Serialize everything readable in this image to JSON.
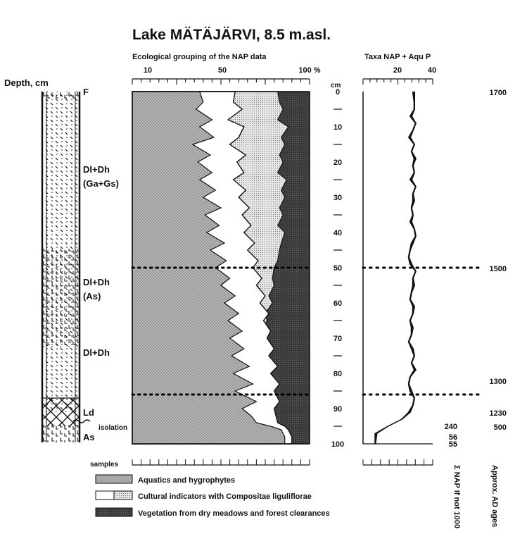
{
  "title": "Lake MÄTÄJÄRVI, 8.5 m.asl.",
  "left_panel": {
    "title": "Ecological grouping of the NAP data",
    "axis_ticks": [
      "10",
      "50",
      "100 %"
    ]
  },
  "right_panel": {
    "title": "Taxa NAP + Aqu P",
    "axis_ticks": [
      "20",
      "40"
    ]
  },
  "depth_column": {
    "header": "Depth, cm",
    "units_label": "cm",
    "tick_labels": [
      "0",
      "10",
      "20",
      "30",
      "40",
      "50",
      "60",
      "70",
      "80",
      "90",
      "100"
    ],
    "sediment_labels": [
      {
        "text": "F",
        "depth": 0
      },
      {
        "text": "Dl+Dh",
        "depth": 22
      },
      {
        "text": "(Ga+Gs)",
        "depth": 26
      },
      {
        "text": "Dl+Dh",
        "depth": 54
      },
      {
        "text": "(As)",
        "depth": 58
      },
      {
        "text": "Dl+Dh",
        "depth": 74
      },
      {
        "text": "Ld",
        "depth": 91
      },
      {
        "text": "isolation",
        "depth": 95
      },
      {
        "text": "As",
        "depth": 98
      }
    ]
  },
  "nap_sums": {
    "values": [
      {
        "depth": 95,
        "value": "240"
      },
      {
        "depth": 98,
        "value": "56"
      },
      {
        "depth": 100,
        "value": "55"
      }
    ],
    "vertical_label": "Σ NAP if not 1000"
  },
  "ages": {
    "values": [
      {
        "depth": 0,
        "label": "1700"
      },
      {
        "depth": 50,
        "label": "1500"
      },
      {
        "depth": 82,
        "label": "1300"
      },
      {
        "depth": 91,
        "label": "1230"
      },
      {
        "depth": 95,
        "label": "500"
      }
    ],
    "vertical_label": "Approx. AD ages"
  },
  "samples_label": "samples",
  "legend": [
    {
      "label": "Aquatics and hygrophytes",
      "pattern": "light-dots"
    },
    {
      "label": "Cultural indicators with Compositae liguliflorae",
      "pattern": "white-plus-dots"
    },
    {
      "label": "Vegetation from dry meadows and forest clearances",
      "pattern": "dark"
    }
  ],
  "chart_data": [
    {
      "type": "area",
      "title": "Ecological grouping of the NAP data",
      "y_axis": "depth (cm)",
      "ylim": [
        0,
        100
      ],
      "xlim": [
        0,
        100
      ],
      "x_unit": "%",
      "x_ticks": [
        10,
        50,
        100
      ],
      "dotted_horizons_depth": [
        50,
        86
      ],
      "depth": [
        0,
        3,
        5,
        8,
        10,
        13,
        15,
        18,
        20,
        23,
        25,
        28,
        30,
        33,
        35,
        38,
        40,
        43,
        45,
        48,
        50,
        53,
        55,
        58,
        60,
        63,
        65,
        68,
        70,
        73,
        75,
        78,
        80,
        83,
        85,
        88,
        90,
        92,
        94,
        95,
        96,
        97,
        98,
        100
      ],
      "series": [
        {
          "name": "Aquatics and hygrophytes",
          "cumulative_right_edge": [
            38,
            40,
            36,
            45,
            38,
            46,
            34,
            44,
            37,
            45,
            38,
            47,
            40,
            50,
            41,
            49,
            42,
            52,
            44,
            53,
            47,
            55,
            50,
            58,
            52,
            60,
            54,
            62,
            55,
            63,
            56,
            66,
            57,
            68,
            58,
            70,
            62,
            67,
            70,
            78,
            84,
            85,
            86,
            86
          ]
        },
        {
          "name": "Cultural indicators with Compositae liguliflorae",
          "cumulative_right_edge": [
            58,
            57,
            62,
            54,
            63,
            60,
            55,
            64,
            59,
            63,
            57,
            64,
            60,
            66,
            62,
            67,
            63,
            69,
            65,
            71,
            68,
            73,
            70,
            75,
            72,
            77,
            74,
            78,
            76,
            80,
            77,
            82,
            78,
            83,
            80,
            83,
            80,
            81,
            82,
            86,
            88,
            89,
            90,
            90
          ]
        },
        {
          "name": "Vegetation from dry meadows and forest clearances",
          "cumulative_right_edge": [
            82,
            83,
            85,
            82,
            88,
            84,
            86,
            83,
            85,
            82,
            87,
            84,
            86,
            83,
            85,
            82,
            86,
            84,
            83,
            82,
            80,
            79,
            80,
            77,
            79,
            75,
            76,
            73,
            74,
            72,
            71,
            71,
            70,
            69,
            70,
            70,
            71,
            71,
            74,
            80,
            86,
            88,
            89,
            90
          ]
        }
      ]
    },
    {
      "type": "line",
      "title": "Taxa NAP + Aqu P",
      "y_axis": "depth (cm)",
      "ylim": [
        0,
        100
      ],
      "x_ticks": [
        20,
        40
      ],
      "xlim": [
        0,
        50
      ],
      "depth": [
        0,
        3,
        5,
        7,
        9,
        11,
        13,
        15,
        17,
        19,
        21,
        23,
        25,
        27,
        29,
        31,
        33,
        35,
        37,
        39,
        41,
        43,
        45,
        47,
        49,
        51,
        53,
        55,
        57,
        59,
        61,
        63,
        65,
        67,
        69,
        71,
        73,
        75,
        77,
        79,
        81,
        83,
        85,
        87,
        89,
        91,
        93,
        95,
        97,
        100
      ],
      "values": [
        37,
        37,
        37,
        35,
        38,
        36,
        34,
        37,
        35,
        38,
        36,
        37,
        35,
        38,
        36,
        37,
        35,
        36,
        35,
        37,
        38,
        36,
        34,
        33,
        35,
        38,
        36,
        37,
        35,
        34,
        37,
        36,
        34,
        36,
        35,
        33,
        36,
        37,
        35,
        38,
        34,
        33,
        35,
        37,
        36,
        34,
        28,
        18,
        10,
        9
      ]
    }
  ]
}
